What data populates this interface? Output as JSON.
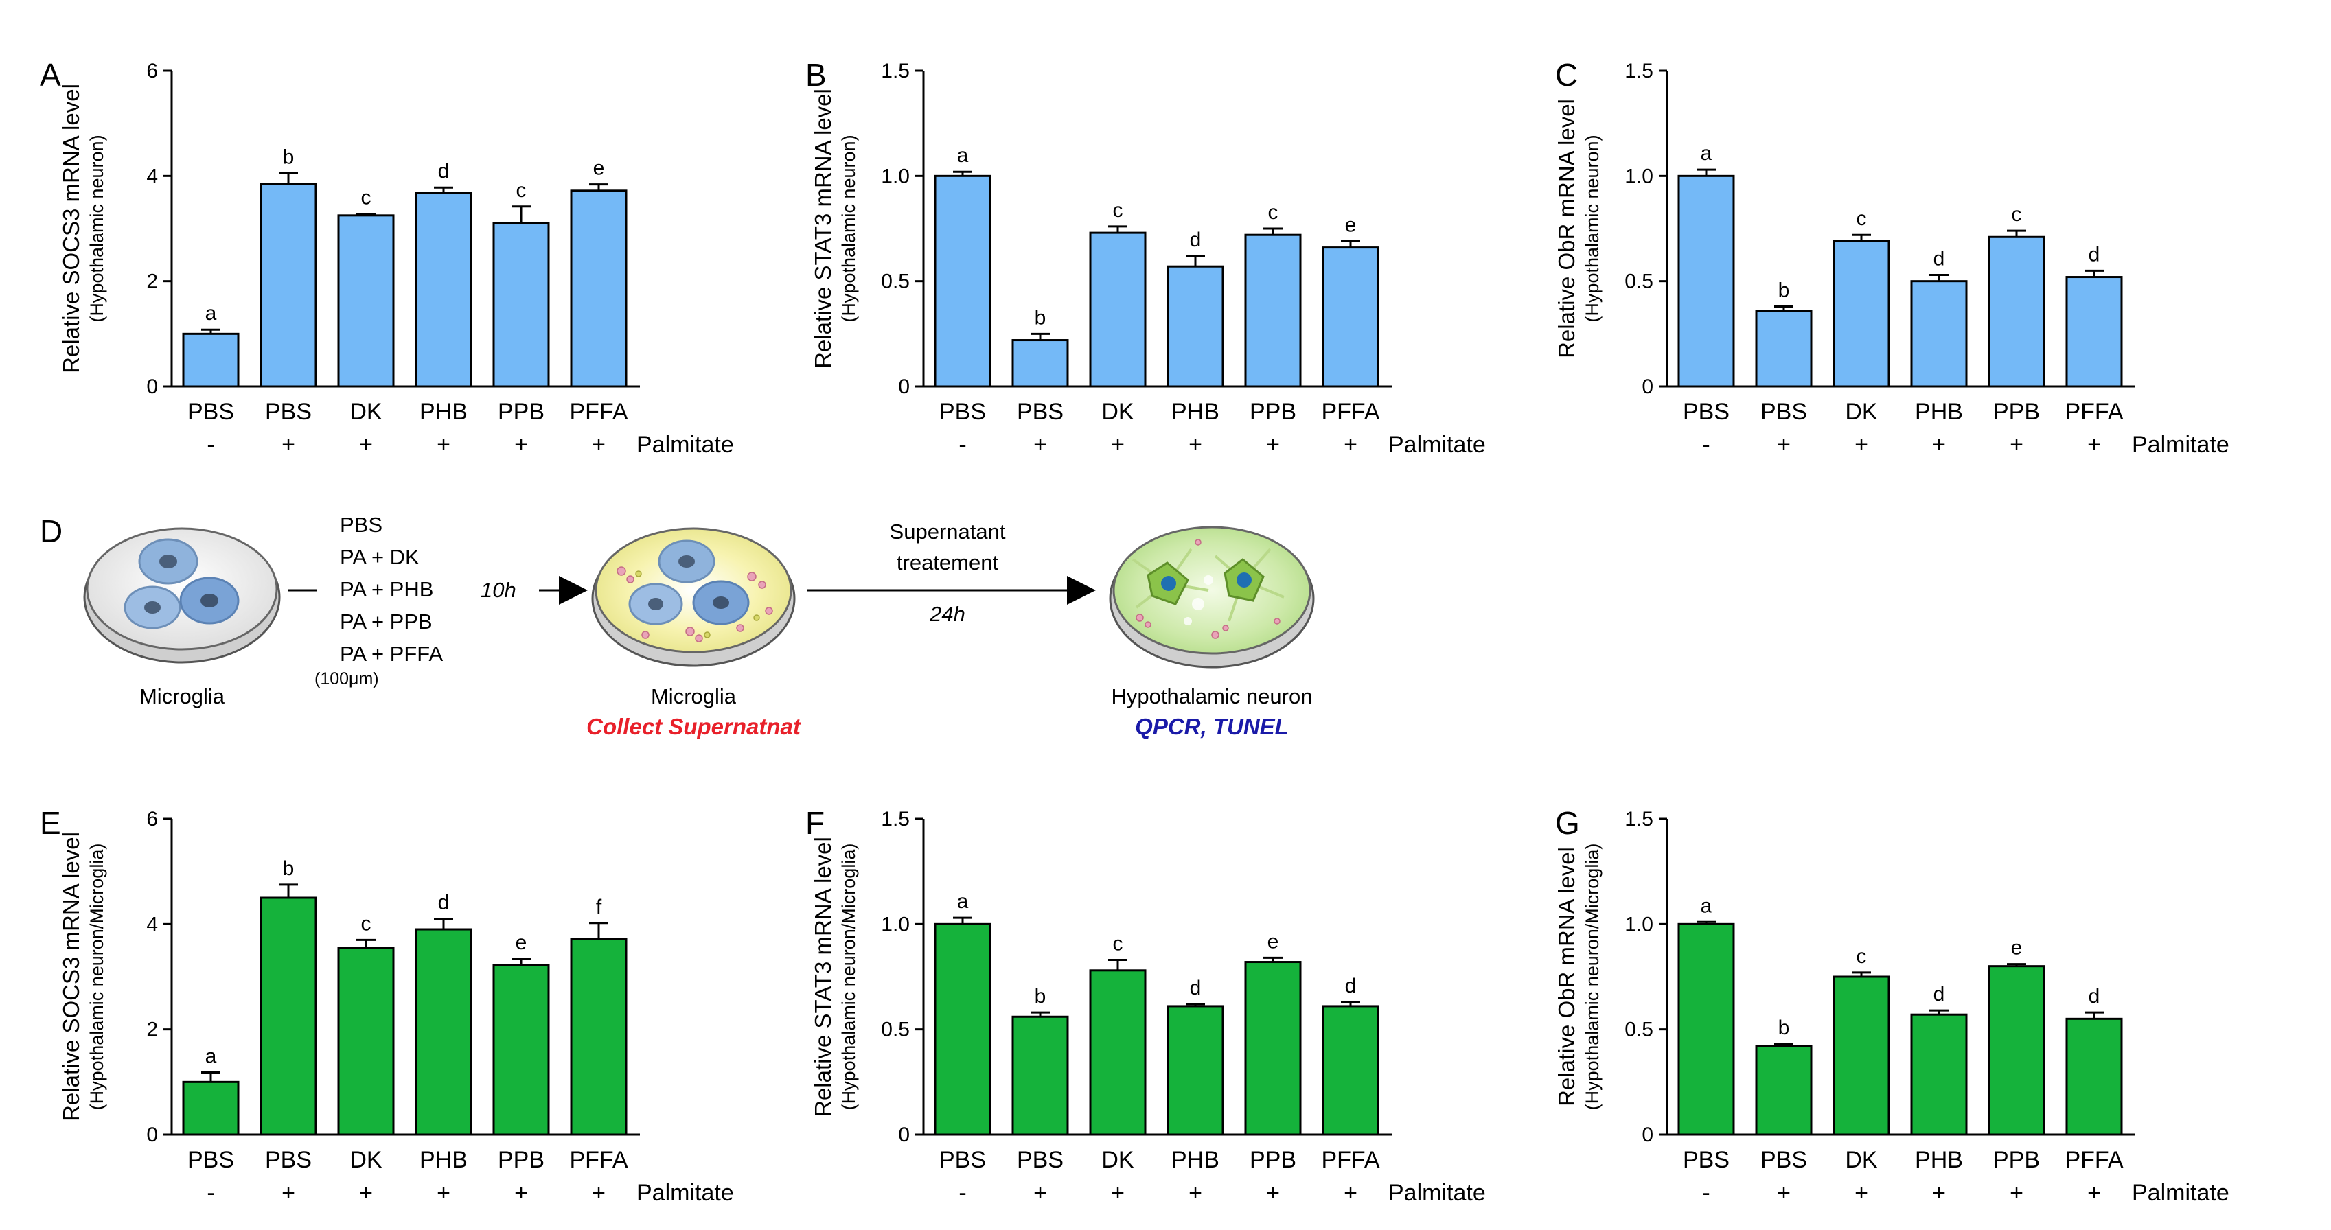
{
  "figure": {
    "diagram": {
      "letter": "D",
      "treatments": [
        "PBS",
        "PA + DK",
        "PA + PHB",
        "PA + PPB",
        "PA + PFFA"
      ],
      "concentration": "(100μm)",
      "dish1_label": "Microglia",
      "time1": "10h",
      "dish2_label": "Microglia",
      "dish2_action": "Collect Supernatnat",
      "step_line1": "Supernatant",
      "step_line2": "treatement",
      "time2": "24h",
      "dish3_label": "Hypothalamic neuron",
      "dish3_action": "QPCR, TUNEL",
      "colors": {
        "action1": "#e8202a",
        "action2": "#1a1aa8",
        "dish_fill": "#f2f2f2",
        "cell": "#8fb3dc"
      }
    }
  },
  "chart_data": [
    {
      "panel": "A",
      "type": "bar",
      "ylabel": "Relative SOCS3 mRNA level",
      "ylabel_sub": "(Hypothalamic neuron)",
      "categories": [
        "PBS",
        "PBS",
        "DK",
        "PHB",
        "PPB",
        "PFFA"
      ],
      "palmitate": [
        "-",
        "+",
        "+",
        "+",
        "+",
        "+"
      ],
      "palmitate_label": "Palmitate",
      "values": [
        1.0,
        3.85,
        3.25,
        3.68,
        3.1,
        3.72
      ],
      "errors": [
        0.08,
        0.2,
        0.03,
        0.1,
        0.32,
        0.12
      ],
      "letters": [
        "a",
        "b",
        "c",
        "d",
        "c",
        "e"
      ],
      "ylim": [
        0,
        6
      ],
      "yticks": [
        0,
        2,
        4,
        6
      ],
      "ytick_labels": [
        "0",
        "2",
        "4",
        "6"
      ],
      "color": "#74b9f7"
    },
    {
      "panel": "B",
      "type": "bar",
      "ylabel": "Relative STAT3 mRNA level",
      "ylabel_sub": "(Hypothalamic neuron)",
      "categories": [
        "PBS",
        "PBS",
        "DK",
        "PHB",
        "PPB",
        "PFFA"
      ],
      "palmitate": [
        "-",
        "+",
        "+",
        "+",
        "+",
        "+"
      ],
      "palmitate_label": "Palmitate",
      "values": [
        1.0,
        0.22,
        0.73,
        0.57,
        0.72,
        0.66
      ],
      "errors": [
        0.02,
        0.03,
        0.03,
        0.05,
        0.03,
        0.03
      ],
      "letters": [
        "a",
        "b",
        "c",
        "d",
        "c",
        "e"
      ],
      "ylim": [
        0,
        1.5
      ],
      "yticks": [
        0,
        0.5,
        1.0,
        1.5
      ],
      "ytick_labels": [
        "0",
        "0.5",
        "1.0",
        "1.5"
      ],
      "color": "#74b9f7"
    },
    {
      "panel": "C",
      "type": "bar",
      "ylabel": "Relative ObR mRNA level",
      "ylabel_sub": "(Hypothalamic neuron)",
      "categories": [
        "PBS",
        "PBS",
        "DK",
        "PHB",
        "PPB",
        "PFFA"
      ],
      "palmitate": [
        "-",
        "+",
        "+",
        "+",
        "+",
        "+"
      ],
      "palmitate_label": "Palmitate",
      "values": [
        1.0,
        0.36,
        0.69,
        0.5,
        0.71,
        0.52
      ],
      "errors": [
        0.03,
        0.02,
        0.03,
        0.03,
        0.03,
        0.03
      ],
      "letters": [
        "a",
        "b",
        "c",
        "d",
        "c",
        "d"
      ],
      "ylim": [
        0,
        1.5
      ],
      "yticks": [
        0,
        0.5,
        1.0,
        1.5
      ],
      "ytick_labels": [
        "0",
        "0.5",
        "1.0",
        "1.5"
      ],
      "color": "#74b9f7"
    },
    {
      "panel": "E",
      "type": "bar",
      "ylabel": "Relative SOCS3 mRNA level",
      "ylabel_sub": "(Hypothalamic neuron/Microglia)",
      "categories": [
        "PBS",
        "PBS",
        "DK",
        "PHB",
        "PPB",
        "PFFA"
      ],
      "palmitate": [
        "-",
        "+",
        "+",
        "+",
        "+",
        "+"
      ],
      "palmitate_label": "Palmitate",
      "values": [
        1.0,
        4.5,
        3.55,
        3.9,
        3.22,
        3.72
      ],
      "errors": [
        0.18,
        0.25,
        0.15,
        0.2,
        0.12,
        0.3
      ],
      "letters": [
        "a",
        "b",
        "c",
        "d",
        "e",
        "f"
      ],
      "ylim": [
        0,
        6
      ],
      "yticks": [
        0,
        2,
        4,
        6
      ],
      "ytick_labels": [
        "0",
        "2",
        "4",
        "6"
      ],
      "color": "#15b23b"
    },
    {
      "panel": "F",
      "type": "bar",
      "ylabel": "Relative STAT3 mRNA level",
      "ylabel_sub": "(Hypothalamic neuron/Microglia)",
      "categories": [
        "PBS",
        "PBS",
        "DK",
        "PHB",
        "PPB",
        "PFFA"
      ],
      "palmitate": [
        "-",
        "+",
        "+",
        "+",
        "+",
        "+"
      ],
      "palmitate_label": "Palmitate",
      "values": [
        1.0,
        0.56,
        0.78,
        0.61,
        0.82,
        0.61
      ],
      "errors": [
        0.03,
        0.02,
        0.05,
        0.01,
        0.02,
        0.02
      ],
      "letters": [
        "a",
        "b",
        "c",
        "d",
        "e",
        "d"
      ],
      "ylim": [
        0,
        1.5
      ],
      "yticks": [
        0,
        0.5,
        1.0,
        1.5
      ],
      "ytick_labels": [
        "0",
        "0.5",
        "1.0",
        "1.5"
      ],
      "color": "#15b23b"
    },
    {
      "panel": "G",
      "type": "bar",
      "ylabel": "Relative ObR mRNA level",
      "ylabel_sub": "(Hypothalamic neuron/Microglia)",
      "categories": [
        "PBS",
        "PBS",
        "DK",
        "PHB",
        "PPB",
        "PFFA"
      ],
      "palmitate": [
        "-",
        "+",
        "+",
        "+",
        "+",
        "+"
      ],
      "palmitate_label": "Palmitate",
      "values": [
        1.0,
        0.42,
        0.75,
        0.57,
        0.8,
        0.55
      ],
      "errors": [
        0.01,
        0.01,
        0.02,
        0.02,
        0.01,
        0.03
      ],
      "letters": [
        "a",
        "b",
        "c",
        "d",
        "e",
        "d"
      ],
      "ylim": [
        0,
        1.5
      ],
      "yticks": [
        0,
        0.5,
        1.0,
        1.5
      ],
      "ytick_labels": [
        "0",
        "0.5",
        "1.0",
        "1.5"
      ],
      "color": "#15b23b"
    }
  ]
}
